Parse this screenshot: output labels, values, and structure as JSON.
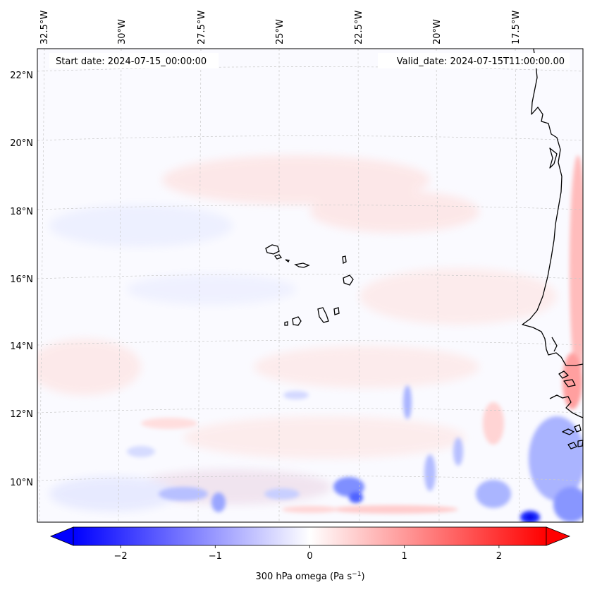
{
  "header": {
    "start_date": "Start date: 2024-07-15_00:00:00",
    "valid_date": "Valid_date: 2024-07-15T11:00:00.00"
  },
  "map": {
    "lon_labels": [
      "32.5°W",
      "30°W",
      "27.5°W",
      "25°W",
      "22.5°W",
      "20°W",
      "17.5°W"
    ],
    "lat_labels": [
      "22°N",
      "20°N",
      "18°N",
      "16°N",
      "14°N",
      "12°N",
      "10°N"
    ],
    "extent": {
      "lon_min": -33.0,
      "lon_max": -15.6,
      "lat_min": 8.8,
      "lat_max": 22.8
    },
    "features": [
      "cape-verde-islands",
      "west-africa-coastline"
    ]
  },
  "colorbar": {
    "label": "300 hPa omega (Pa s",
    "label_sup": "−1",
    "label_close": ")",
    "ticks": [
      "−2",
      "−1",
      "0",
      "1",
      "2"
    ],
    "tick_values": [
      -2,
      -1,
      0,
      1,
      2
    ],
    "vmin": -2.5,
    "vmax": 2.5,
    "extend": "both",
    "cmap": "bwr",
    "color_neg": "#0000ff",
    "color_mid": "#ffffff",
    "color_pos": "#ff0000"
  },
  "chart_data": {
    "type": "heatmap",
    "title": "",
    "variable": "300 hPa omega",
    "units": "Pa s−1",
    "xlabel": "",
    "ylabel": "",
    "x_ticks": [
      "32.5°W",
      "30°W",
      "27.5°W",
      "25°W",
      "22.5°W",
      "20°W",
      "17.5°W"
    ],
    "y_ticks": [
      "22°N",
      "20°N",
      "18°N",
      "16°N",
      "14°N",
      "12°N",
      "10°N"
    ],
    "clim": [
      -2.5,
      2.5
    ],
    "grid": true,
    "notable_regions": [
      {
        "desc": "strong ascent patch near Guinea coast",
        "lon": -16.8,
        "lat": 9.0,
        "value": -2.4
      },
      {
        "desc": "ascent streaks south",
        "lon": -22.5,
        "lat": 10.0,
        "value": -1.0
      },
      {
        "desc": "weak subsidence along African coast",
        "lon": -15.8,
        "lat": 16.0,
        "value": 0.6
      }
    ]
  }
}
